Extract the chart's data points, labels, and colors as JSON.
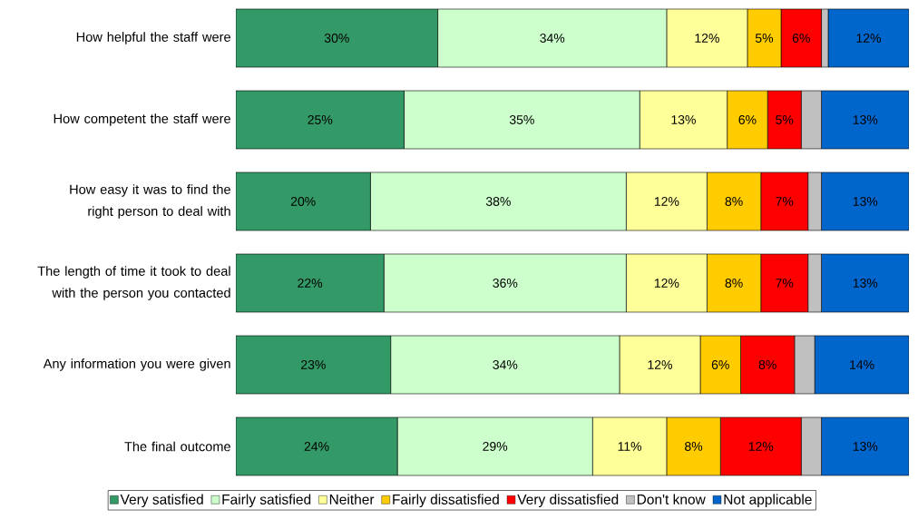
{
  "chart_data": {
    "type": "bar",
    "orientation": "horizontal",
    "stacked": true,
    "legend": "bottom",
    "tick_labels": "y",
    "categories": [
      "How helpful the staff were",
      "How competent the staff were",
      "How easy it was to find the right person to deal with",
      "The length of time it took to deal with the person you contacted",
      "Any information you were given",
      "The final outcome"
    ],
    "series": [
      {
        "name": "Very satisfied",
        "color": "#339966",
        "values": [
          30,
          25,
          20,
          22,
          23,
          24
        ],
        "value_labels": [
          "30%",
          "25%",
          "20%",
          "22%",
          "23%",
          "24%"
        ]
      },
      {
        "name": "Fairly satisfied",
        "color": "#ccffcc",
        "values": [
          34,
          35,
          38,
          36,
          34,
          29
        ],
        "value_labels": [
          "34%",
          "35%",
          "38%",
          "36%",
          "34%",
          "29%"
        ]
      },
      {
        "name": "Neither",
        "color": "#ffff99",
        "values": [
          12,
          13,
          12,
          12,
          12,
          11
        ],
        "value_labels": [
          "12%",
          "13%",
          "12%",
          "12%",
          "12%",
          "11%"
        ]
      },
      {
        "name": "Fairly dissatisfied",
        "color": "#ffcc00",
        "values": [
          5,
          6,
          8,
          8,
          6,
          8
        ],
        "value_labels": [
          "5%",
          "6%",
          "8%",
          "8%",
          "6%",
          "8%"
        ]
      },
      {
        "name": "Very dissatisfied",
        "color": "#ff0000",
        "values": [
          6,
          5,
          7,
          7,
          8,
          12
        ],
        "value_labels": [
          "6%",
          "5%",
          "7%",
          "7%",
          "8%",
          "12%"
        ]
      },
      {
        "name": "Don't know",
        "color": "#c0c0c0",
        "values": [
          1,
          3,
          2,
          2,
          3,
          3
        ],
        "value_labels": [
          null,
          null,
          null,
          null,
          null,
          null
        ]
      },
      {
        "name": "Not applicable",
        "color": "#0066cc",
        "values": [
          12,
          13,
          13,
          13,
          14,
          13
        ],
        "value_labels": [
          "12%",
          "13%",
          "13%",
          "13%",
          "14%",
          "13%"
        ]
      }
    ]
  }
}
